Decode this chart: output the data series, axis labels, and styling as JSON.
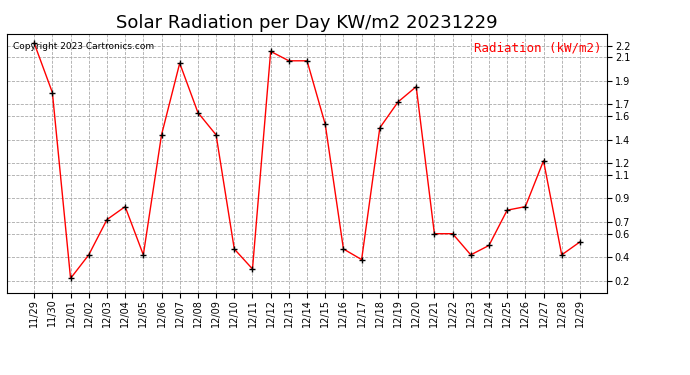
{
  "title": "Solar Radiation per Day KW/m2 20231229",
  "copyright_text": "Copyright 2023 Cartronics.com",
  "legend_label": "Radiation (kW/m2)",
  "dates": [
    "11/29",
    "11/30",
    "12/01",
    "12/02",
    "12/03",
    "12/04",
    "12/05",
    "12/06",
    "12/07",
    "12/08",
    "12/09",
    "12/10",
    "12/11",
    "12/12",
    "12/13",
    "12/14",
    "12/15",
    "12/16",
    "12/17",
    "12/18",
    "12/19",
    "12/20",
    "12/21",
    "12/22",
    "12/23",
    "12/24",
    "12/25",
    "12/26",
    "12/27",
    "12/28",
    "12/29"
  ],
  "values": [
    2.22,
    1.8,
    0.22,
    0.42,
    0.72,
    0.83,
    0.42,
    1.44,
    2.05,
    1.63,
    1.44,
    0.47,
    0.3,
    2.15,
    2.07,
    2.07,
    1.53,
    0.47,
    0.38,
    1.5,
    1.72,
    1.85,
    0.6,
    0.6,
    0.42,
    0.5,
    0.8,
    0.83,
    1.22,
    0.42,
    0.53
  ],
  "line_color": "#ff0000",
  "marker_color": "#000000",
  "background_color": "#ffffff",
  "grid_color": "#aaaaaa",
  "ylim": [
    0.1,
    2.3
  ],
  "yticks": [
    0.2,
    0.4,
    0.6,
    0.7,
    0.9,
    1.1,
    1.2,
    1.4,
    1.6,
    1.7,
    1.9,
    2.1,
    2.2
  ],
  "title_fontsize": 13,
  "copyright_fontsize": 6.5,
  "legend_fontsize": 9,
  "tick_fontsize": 7
}
